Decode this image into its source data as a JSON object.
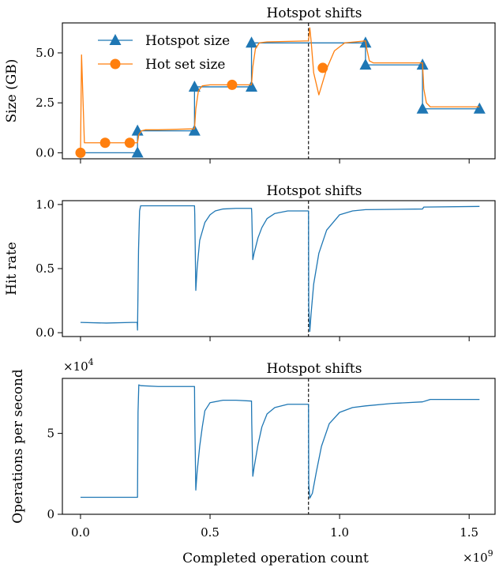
{
  "figure": {
    "x_label": "Completed operation count",
    "x_multiplier": "×10",
    "x_multiplier_exp": "9",
    "x_ticks": [
      "0.0",
      "0.5",
      "1.0",
      "1.5"
    ]
  },
  "chart_data": [
    {
      "type": "line",
      "title": "Hotspot shifts",
      "ylabel": "Size (GB)",
      "xlim": [
        -0.07,
        1.6
      ],
      "ylim": [
        -0.3,
        6.5
      ],
      "yticks": [
        0.0,
        2.5,
        5.0
      ],
      "ytick_labels": [
        "0.0",
        "2.5",
        "5.0"
      ],
      "vline_x": 0.88,
      "legend": {
        "placement": "upper-left",
        "entries": [
          "Hotspot size",
          "Hot set size"
        ]
      },
      "series": [
        {
          "name": "Hotspot size",
          "color": "#1f77b4",
          "marker": "triangle",
          "x": [
            0.0,
            0.22,
            0.22,
            0.44,
            0.44,
            0.66,
            0.66,
            0.88,
            0.88,
            1.1,
            1.1,
            1.32,
            1.32,
            1.54
          ],
          "y": [
            0.0,
            0.0,
            1.1,
            1.1,
            3.3,
            3.3,
            5.5,
            5.5,
            5.5,
            5.5,
            4.4,
            4.4,
            2.2,
            2.2
          ],
          "markers": [
            [
              0.22,
              0.0
            ],
            [
              0.22,
              1.1
            ],
            [
              0.44,
              1.1
            ],
            [
              0.44,
              3.3
            ],
            [
              0.66,
              3.3
            ],
            [
              0.66,
              5.5
            ],
            [
              1.1,
              5.5
            ],
            [
              1.1,
              4.4
            ],
            [
              1.32,
              4.4
            ],
            [
              1.32,
              2.2
            ],
            [
              1.54,
              2.2
            ]
          ]
        },
        {
          "name": "Hot set size",
          "color": "#ff7f0e",
          "marker": "circle",
          "x": [
            0.0,
            0.004,
            0.01,
            0.015,
            0.22,
            0.225,
            0.235,
            0.25,
            0.3,
            0.44,
            0.445,
            0.455,
            0.47,
            0.5,
            0.66,
            0.665,
            0.675,
            0.69,
            0.72,
            0.88,
            0.885,
            0.89,
            0.9,
            0.92,
            0.95,
            0.98,
            1.02,
            1.1,
            1.105,
            1.115,
            1.13,
            1.32,
            1.325,
            1.335,
            1.35,
            1.54
          ],
          "y": [
            0.0,
            4.9,
            2.5,
            0.5,
            0.5,
            0.9,
            1.1,
            1.15,
            1.15,
            1.2,
            2.2,
            3.1,
            3.35,
            3.4,
            3.4,
            4.3,
            5.2,
            5.5,
            5.55,
            5.6,
            6.25,
            5.6,
            4.0,
            2.9,
            4.2,
            5.1,
            5.5,
            5.6,
            5.2,
            4.6,
            4.5,
            4.5,
            3.2,
            2.5,
            2.3,
            2.3
          ],
          "markers": [
            [
              0.0,
              0.0
            ],
            [
              0.095,
              0.5
            ],
            [
              0.19,
              0.5
            ],
            [
              0.585,
              3.4
            ],
            [
              0.935,
              4.25
            ]
          ]
        }
      ]
    },
    {
      "type": "line",
      "title": "Hotspot shifts",
      "ylabel": "Hit rate",
      "xlim": [
        -0.07,
        1.6
      ],
      "ylim": [
        -0.03,
        1.03
      ],
      "yticks": [
        0.0,
        0.5,
        1.0
      ],
      "ytick_labels": [
        "0.0",
        "0.5",
        "1.0"
      ],
      "vline_x": 0.88,
      "series": [
        {
          "name": "",
          "color": "#1f77b4",
          "x": [
            0.0,
            0.1,
            0.2,
            0.219,
            0.22,
            0.224,
            0.228,
            0.232,
            0.44,
            0.441,
            0.445,
            0.45,
            0.46,
            0.48,
            0.5,
            0.52,
            0.55,
            0.6,
            0.66,
            0.661,
            0.665,
            0.67,
            0.685,
            0.7,
            0.72,
            0.75,
            0.8,
            0.88,
            0.881,
            0.885,
            0.89,
            0.9,
            0.92,
            0.95,
            1.0,
            1.05,
            1.1,
            1.32,
            1.325,
            1.54
          ],
          "y": [
            0.08,
            0.075,
            0.08,
            0.08,
            0.02,
            0.65,
            0.95,
            0.99,
            0.99,
            0.92,
            0.33,
            0.5,
            0.72,
            0.86,
            0.92,
            0.95,
            0.965,
            0.97,
            0.97,
            0.93,
            0.57,
            0.62,
            0.74,
            0.82,
            0.89,
            0.93,
            0.95,
            0.95,
            0.2,
            0.01,
            0.15,
            0.38,
            0.62,
            0.8,
            0.92,
            0.95,
            0.96,
            0.965,
            0.98,
            0.985
          ]
        }
      ]
    },
    {
      "type": "line",
      "title": "Hotspot shifts",
      "ylabel": "Operations per second",
      "y_multiplier": "×10",
      "y_multiplier_exp": "4",
      "xlim": [
        -0.07,
        1.6
      ],
      "ylim": [
        0,
        8.4
      ],
      "yticks": [
        0,
        5
      ],
      "ytick_labels": [
        "0",
        "5"
      ],
      "vline_x": 0.88,
      "series": [
        {
          "name": "",
          "color": "#1f77b4",
          "x": [
            0.0,
            0.1,
            0.22,
            0.222,
            0.225,
            0.232,
            0.3,
            0.44,
            0.441,
            0.445,
            0.45,
            0.46,
            0.47,
            0.48,
            0.5,
            0.55,
            0.6,
            0.66,
            0.661,
            0.665,
            0.67,
            0.685,
            0.7,
            0.72,
            0.75,
            0.8,
            0.88,
            0.881,
            0.885,
            0.895,
            0.91,
            0.93,
            0.96,
            1.0,
            1.05,
            1.1,
            1.2,
            1.32,
            1.35,
            1.54
          ],
          "y": [
            1.05,
            1.05,
            1.05,
            6.3,
            8.0,
            7.95,
            7.9,
            7.9,
            6.0,
            1.5,
            2.6,
            4.2,
            5.4,
            6.4,
            6.9,
            7.05,
            7.05,
            7.0,
            5.6,
            2.35,
            2.9,
            4.3,
            5.4,
            6.2,
            6.6,
            6.8,
            6.8,
            1.9,
            1.0,
            1.3,
            2.6,
            4.2,
            5.6,
            6.3,
            6.6,
            6.7,
            6.85,
            6.95,
            7.1,
            7.1
          ]
        }
      ]
    }
  ]
}
